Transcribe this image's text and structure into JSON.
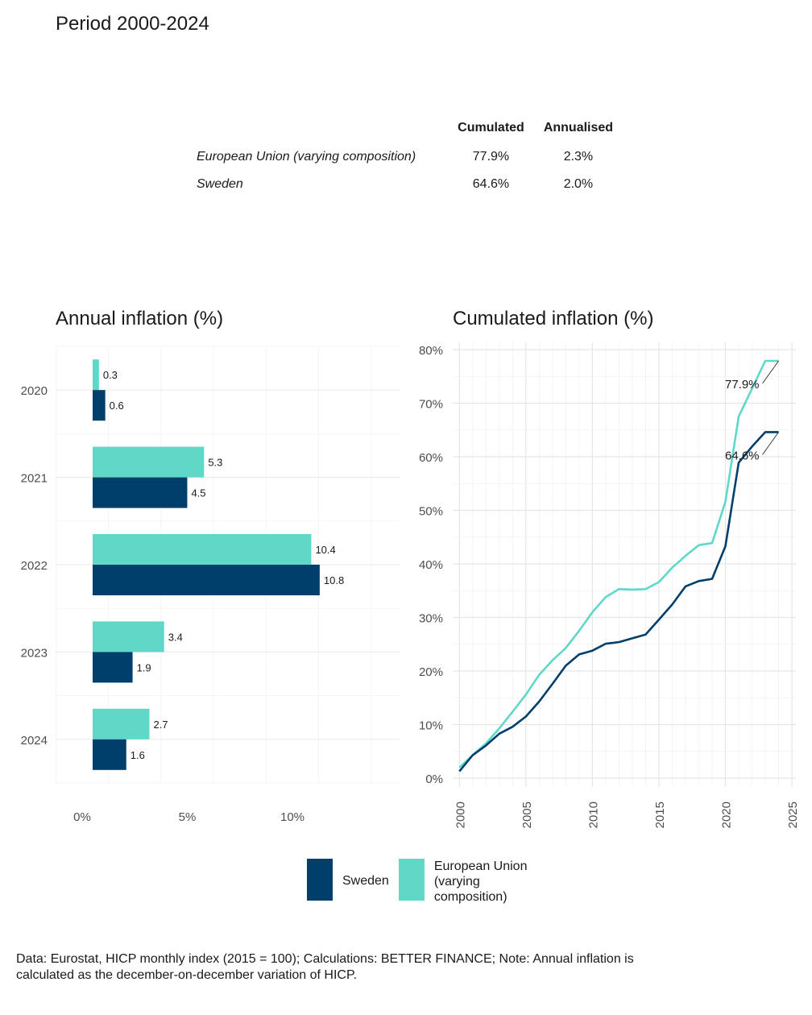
{
  "period_title": "Period 2000-2024",
  "summary_table": {
    "headers": [
      "Cumulated",
      "Annualised"
    ],
    "rows": [
      {
        "label": "European Union (varying composition)",
        "cumulated": "77.9%",
        "annualised": "2.3%"
      },
      {
        "label": "Sweden",
        "cumulated": "64.6%",
        "annualised": "2.0%"
      }
    ]
  },
  "legend": [
    {
      "label": "Sweden",
      "color": "#003f6b"
    },
    {
      "label": "European Union (varying composition)",
      "color": "#5fd8c8"
    }
  ],
  "footnote": "Data: Eurostat, HICP monthly index (2015 = 100); Calculations: BETTER FINANCE; Note: Annual inflation is calculated as the december-on-december variation of HICP.",
  "chart_data": [
    {
      "type": "bar",
      "title": "Annual inflation (%)",
      "orientation": "horizontal",
      "categories": [
        "2020",
        "2021",
        "2022",
        "2023",
        "2024"
      ],
      "series": [
        {
          "name": "European Union (varying composition)",
          "color": "#5fd8c8",
          "values": [
            0.3,
            5.3,
            10.4,
            3.4,
            2.7
          ]
        },
        {
          "name": "Sweden",
          "color": "#003f6b",
          "values": [
            0.6,
            4.5,
            10.8,
            1.9,
            1.6
          ]
        }
      ],
      "x_ticks": [
        "0%",
        "5%",
        "10%"
      ],
      "xlim": [
        0,
        14
      ],
      "grid": true
    },
    {
      "type": "line",
      "title": "Cumulated inflation (%)",
      "x": [
        2000,
        2001,
        2002,
        2003,
        2004,
        2005,
        2006,
        2007,
        2008,
        2009,
        2010,
        2011,
        2012,
        2013,
        2014,
        2015,
        2016,
        2017,
        2018,
        2019,
        2020,
        2021,
        2022,
        2023,
        2024
      ],
      "series": [
        {
          "name": "European Union (varying composition)",
          "color": "#5fd8c8",
          "values": [
            2.0,
            4.3,
            6.5,
            9.3,
            12.4,
            15.6,
            19.3,
            22.0,
            24.3,
            27.5,
            31.0,
            33.8,
            35.3,
            35.2,
            35.3,
            36.6,
            39.3,
            41.5,
            43.5,
            43.9,
            51.6,
            67.5,
            72.7,
            77.9,
            77.9
          ],
          "end_label": "77.9%"
        },
        {
          "name": "Sweden",
          "color": "#003f6b",
          "values": [
            1.3,
            4.3,
            6.1,
            8.3,
            9.6,
            11.5,
            14.3,
            17.6,
            21.0,
            23.1,
            23.8,
            25.1,
            25.4,
            26.1,
            26.8,
            29.6,
            32.4,
            35.8,
            36.8,
            37.2,
            43.3,
            58.9,
            61.9,
            64.6,
            64.6
          ],
          "end_label": "64.6%"
        }
      ],
      "x_ticks": [
        "2000",
        "2005",
        "2010",
        "2015",
        "2020",
        "2025"
      ],
      "y_ticks": [
        "0%",
        "10%",
        "20%",
        "30%",
        "40%",
        "50%",
        "60%",
        "70%",
        "80%"
      ],
      "xlim": [
        1999.5,
        2025.3
      ],
      "ylim": [
        0,
        80
      ],
      "grid": true
    }
  ]
}
